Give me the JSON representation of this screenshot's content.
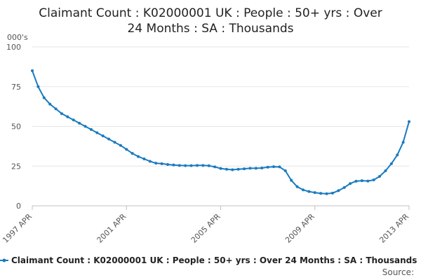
{
  "chart_data": {
    "type": "line",
    "title_lines": [
      "Claimant Count : K02000001 UK : People : 50+ yrs : Over",
      "24 Months : SA : Thousands"
    ],
    "y_unit_label": "000's",
    "ylim": [
      0,
      100
    ],
    "y_ticks": [
      0,
      25,
      50,
      75,
      100
    ],
    "xlim": [
      1997.25,
      2013.25
    ],
    "x_ticks": [
      {
        "value": 1997.25,
        "label": "1997 APR"
      },
      {
        "value": 2001.25,
        "label": "2001 APR"
      },
      {
        "value": 2005.25,
        "label": "2005 APR"
      },
      {
        "value": 2009.25,
        "label": "2009 APR"
      },
      {
        "value": 2013.25,
        "label": "2013 APR"
      }
    ],
    "grid": "horizontal",
    "legend_position": "bottom",
    "color": "#1a7bbf",
    "series": [
      {
        "name": "Claimant Count : K02000001 UK : People : 50+ yrs : Over 24 Months : SA : Thousands",
        "points": [
          [
            1997.25,
            85
          ],
          [
            1997.5,
            75
          ],
          [
            1997.75,
            68
          ],
          [
            1998.0,
            64
          ],
          [
            1998.25,
            61
          ],
          [
            1998.5,
            58
          ],
          [
            1998.75,
            56
          ],
          [
            1999.0,
            54
          ],
          [
            1999.25,
            52
          ],
          [
            1999.5,
            50
          ],
          [
            1999.75,
            48
          ],
          [
            2000.0,
            46
          ],
          [
            2000.25,
            44
          ],
          [
            2000.5,
            42
          ],
          [
            2000.75,
            40
          ],
          [
            2001.0,
            38
          ],
          [
            2001.25,
            35.5
          ],
          [
            2001.5,
            33
          ],
          [
            2001.75,
            31
          ],
          [
            2002.0,
            29.5
          ],
          [
            2002.25,
            28
          ],
          [
            2002.5,
            26.8
          ],
          [
            2002.75,
            26.5
          ],
          [
            2003.0,
            26
          ],
          [
            2003.25,
            25.7
          ],
          [
            2003.5,
            25.4
          ],
          [
            2003.75,
            25.3
          ],
          [
            2004.0,
            25.3
          ],
          [
            2004.25,
            25.4
          ],
          [
            2004.5,
            25.4
          ],
          [
            2004.75,
            25.2
          ],
          [
            2005.0,
            24.5
          ],
          [
            2005.25,
            23.5
          ],
          [
            2005.5,
            23
          ],
          [
            2005.75,
            22.7
          ],
          [
            2006.0,
            23
          ],
          [
            2006.25,
            23.3
          ],
          [
            2006.5,
            23.6
          ],
          [
            2006.75,
            23.6
          ],
          [
            2007.0,
            23.8
          ],
          [
            2007.25,
            24.3
          ],
          [
            2007.5,
            24.6
          ],
          [
            2007.75,
            24.5
          ],
          [
            2008.0,
            22
          ],
          [
            2008.25,
            16
          ],
          [
            2008.5,
            12
          ],
          [
            2008.75,
            10
          ],
          [
            2009.0,
            9
          ],
          [
            2009.25,
            8.3
          ],
          [
            2009.5,
            7.8
          ],
          [
            2009.75,
            7.6
          ],
          [
            2010.0,
            8
          ],
          [
            2010.25,
            9.5
          ],
          [
            2010.5,
            11.5
          ],
          [
            2010.75,
            14
          ],
          [
            2011.0,
            15.5
          ],
          [
            2011.25,
            15.8
          ],
          [
            2011.5,
            15.6
          ],
          [
            2011.75,
            16.3
          ],
          [
            2012.0,
            18.5
          ],
          [
            2012.25,
            22
          ],
          [
            2012.5,
            26.5
          ],
          [
            2012.75,
            32
          ],
          [
            2013.0,
            40
          ],
          [
            2013.25,
            53
          ]
        ]
      }
    ]
  },
  "source_label": "Source:"
}
